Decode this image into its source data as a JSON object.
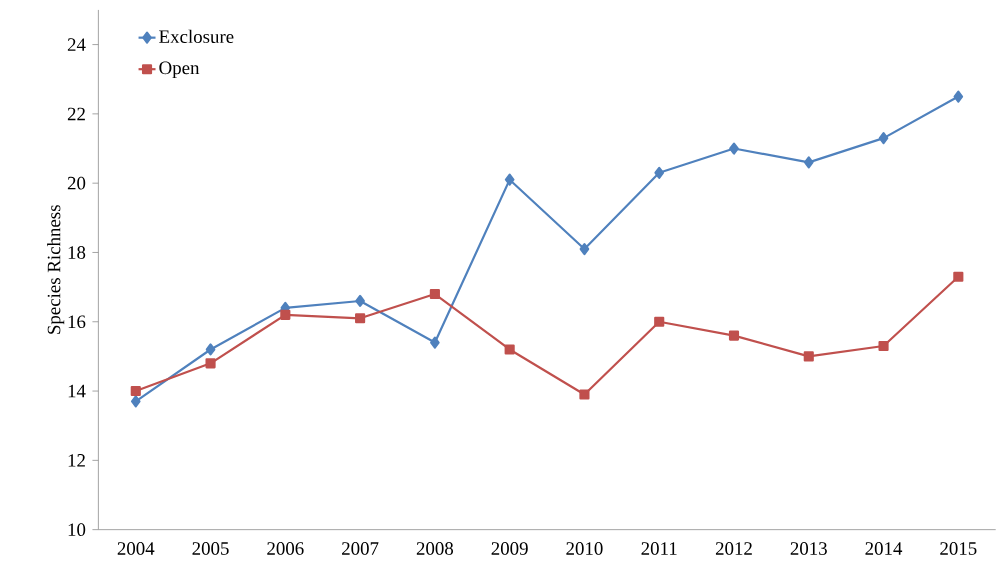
{
  "chart_data": {
    "type": "line",
    "ylabel": "Species Richness",
    "categories": [
      "2004",
      "2005",
      "2006",
      "2007",
      "2008",
      "2009",
      "2010",
      "2011",
      "2012",
      "2013",
      "2014",
      "2015"
    ],
    "series": [
      {
        "name": "Exclosure",
        "color": "#4f81bd",
        "marker": "diamond",
        "values": [
          13.7,
          15.2,
          16.4,
          16.6,
          15.4,
          20.1,
          18.1,
          20.3,
          21.0,
          20.6,
          21.3,
          22.5
        ]
      },
      {
        "name": "Open",
        "color": "#c0504d",
        "marker": "square",
        "values": [
          14.0,
          14.8,
          16.2,
          16.1,
          16.8,
          15.2,
          13.9,
          16.0,
          15.6,
          15.0,
          15.3,
          17.3
        ]
      }
    ],
    "ylim": [
      10,
      25
    ],
    "yticks": [
      10,
      12,
      14,
      16,
      18,
      20,
      22,
      24
    ],
    "legend": "top left"
  }
}
